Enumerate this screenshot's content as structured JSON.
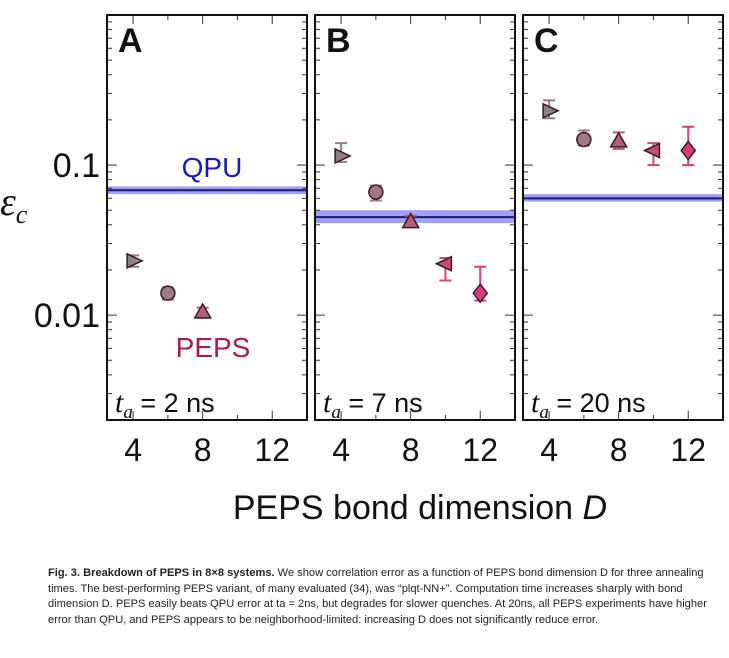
{
  "figure": {
    "ylabel_symbol": "ε",
    "ylabel_sub": "c",
    "xlabel_main": "PEPS bond dimension ",
    "xlabel_var": "D",
    "y_ticks": [
      "0.1",
      "0.01"
    ],
    "x_ticks": [
      "4",
      "8",
      "12"
    ],
    "qpu_label": "QPU",
    "peps_label": "PEPS"
  },
  "colors": {
    "qpu_line": "#1a1a6e",
    "qpu_band": "#8f8ff0",
    "qpu_text": "#1a1ab4",
    "peps_text": "#a01e50",
    "marker_stroke": "#3a1a24"
  },
  "chart_data": [
    {
      "type": "scatter",
      "panel_label": "A",
      "annotation": {
        "var": "t",
        "sub": "a",
        "text": " = 2 ns"
      },
      "y_scale": "log",
      "ylim": [
        0.002,
        1.0
      ],
      "xlim": [
        2.5,
        14
      ],
      "qpu": {
        "value": 0.068,
        "band": [
          0.064,
          0.072
        ]
      },
      "points": [
        {
          "D": 4,
          "value": 0.023,
          "err": [
            0.021,
            0.025
          ],
          "marker": "triangle-right",
          "color": "#8f7f84"
        },
        {
          "D": 6,
          "value": 0.014,
          "err": [
            0.0127,
            0.0153
          ],
          "marker": "circle",
          "color": "#9d7a86"
        },
        {
          "D": 8,
          "value": 0.0105,
          "err": [
            0.0096,
            0.0112
          ],
          "marker": "triangle-up",
          "color": "#b0607c"
        }
      ]
    },
    {
      "type": "scatter",
      "panel_label": "B",
      "annotation": {
        "var": "t",
        "sub": "a",
        "text": " = 7 ns"
      },
      "y_scale": "log",
      "ylim": [
        0.002,
        1.0
      ],
      "xlim": [
        2.5,
        14
      ],
      "qpu": {
        "value": 0.045,
        "band": [
          0.041,
          0.05
        ]
      },
      "points": [
        {
          "D": 4,
          "value": 0.115,
          "err": [
            0.105,
            0.14
          ],
          "marker": "triangle-right",
          "color": "#8f7f84"
        },
        {
          "D": 6,
          "value": 0.066,
          "err": [
            0.058,
            0.073
          ],
          "marker": "circle",
          "color": "#9d7a86"
        },
        {
          "D": 8,
          "value": 0.042,
          "err": [
            0.039,
            0.046
          ],
          "marker": "triangle-up",
          "color": "#b0607c"
        },
        {
          "D": 10,
          "value": 0.022,
          "err": [
            0.017,
            0.024
          ],
          "marker": "triangle-left",
          "color": "#c54b78"
        },
        {
          "D": 12,
          "value": 0.014,
          "err": [
            0.0125,
            0.021
          ],
          "marker": "diamond",
          "color": "#d63c78"
        }
      ]
    },
    {
      "type": "scatter",
      "panel_label": "C",
      "annotation": {
        "var": "t",
        "sub": "a",
        "text": " = 20 ns"
      },
      "y_scale": "log",
      "ylim": [
        0.002,
        1.0
      ],
      "xlim": [
        2.5,
        14
      ],
      "qpu": {
        "value": 0.06,
        "band": [
          0.057,
          0.064
        ]
      },
      "points": [
        {
          "D": 4,
          "value": 0.23,
          "err": [
            0.205,
            0.27
          ],
          "marker": "triangle-right",
          "color": "#8f7f84"
        },
        {
          "D": 6,
          "value": 0.148,
          "err": [
            0.135,
            0.17
          ],
          "marker": "circle",
          "color": "#9d7a86"
        },
        {
          "D": 8,
          "value": 0.145,
          "err": [
            0.128,
            0.165
          ],
          "marker": "triangle-up",
          "color": "#b0607c"
        },
        {
          "D": 10,
          "value": 0.125,
          "err": [
            0.1,
            0.14
          ],
          "marker": "triangle-left",
          "color": "#c54b78"
        },
        {
          "D": 12,
          "value": 0.125,
          "err": [
            0.1,
            0.18
          ],
          "marker": "diamond",
          "color": "#d63c78"
        }
      ]
    }
  ],
  "caption": {
    "lead": "Fig. 3. Breakdown of PEPS in 8×8 systems.",
    "body": "We show correlation error as a function of PEPS bond dimension D for three annealing times. The best-performing PEPS variant, of many evaluated (34), was “plqt-NN+”. Computation time increases sharply with bond dimension D. PEPS easily beats QPU error at ta = 2ns, but degrades for slower quenches. At 20ns, all PEPS experiments have higher error than QPU, and PEPS appears to be neighborhood-limited: increasing D does not significantly reduce error."
  }
}
